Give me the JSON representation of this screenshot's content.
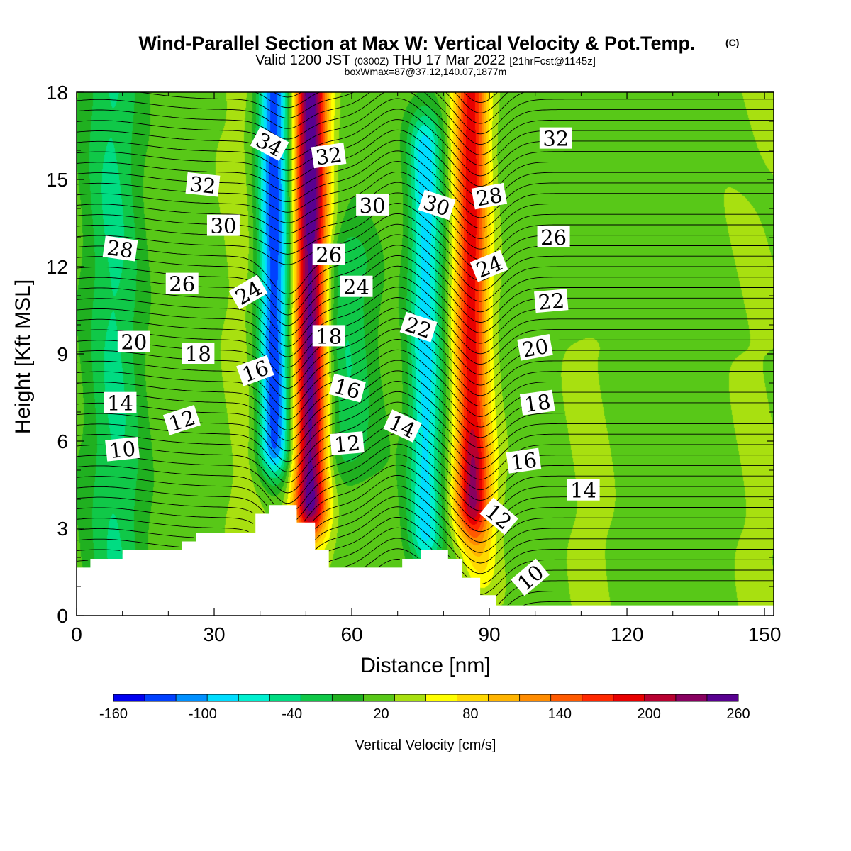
{
  "chart_data": {
    "type": "heatmap",
    "title": "Wind-Parallel Section at Max W: Vertical Velocity & Pot.Temp.",
    "copyright_mark": "(C)",
    "subtitle": {
      "valid_prefix": "Valid 1200 JST",
      "utc": "(0300Z)",
      "date": "THU 17 Mar 2022",
      "forecast": "[21hrFcst@1145z]"
    },
    "subtitle2": "boxWmax=87@37.12,140.07,1877m",
    "xlabel": "Distance [nm]",
    "ylabel": "Height [Kft MSL]",
    "xlim": [
      0,
      152
    ],
    "ylim": [
      0,
      18
    ],
    "x_ticks": [
      "0",
      "30",
      "60",
      "90",
      "120",
      "150"
    ],
    "y_ticks": [
      "0",
      "3",
      "6",
      "9",
      "12",
      "15",
      "18"
    ],
    "colorbar": {
      "title": "Vertical Velocity [cm/s]",
      "min": -160,
      "max": 260,
      "step": 20,
      "labels": [
        "-160",
        "-100",
        "-40",
        "20",
        "80",
        "140",
        "200",
        "260"
      ],
      "colors": [
        "#0000f0",
        "#0040ff",
        "#0090ff",
        "#00ddff",
        "#00f0d0",
        "#00dc82",
        "#10c848",
        "#20b020",
        "#58c818",
        "#a8e010",
        "#ffff00",
        "#ffd800",
        "#ffb400",
        "#ff8c00",
        "#ff5a00",
        "#ff2800",
        "#e80000",
        "#b80030",
        "#880060",
        "#580090"
      ]
    },
    "velocity_field": {
      "background": 10,
      "features": [
        {
          "x": 38,
          "z_range": [
            2,
            18
          ],
          "value": 30
        },
        {
          "x": 43,
          "z_range": [
            6,
            18
          ],
          "value": -140
        },
        {
          "x": 51,
          "z_range": [
            4,
            18
          ],
          "value": 240
        },
        {
          "x": 58,
          "z_range": [
            6,
            12
          ],
          "value": -40
        },
        {
          "x": 76,
          "z_range": [
            3,
            16
          ],
          "value": -90
        },
        {
          "x": 86,
          "z_range": [
            4,
            18
          ],
          "value": 170
        },
        {
          "x": 88,
          "z_range": [
            2,
            5
          ],
          "value": 60
        },
        {
          "x": 113,
          "z_range": [
            0,
            9
          ],
          "value": 25
        },
        {
          "x": 8,
          "z_range": [
            2,
            18
          ],
          "value": -40
        },
        {
          "x": 150,
          "z_range": [
            0,
            18
          ],
          "value": 25
        }
      ]
    },
    "terrain": [
      [
        0,
        1.65
      ],
      [
        3,
        1.65
      ],
      [
        3,
        1.95
      ],
      [
        10,
        1.95
      ],
      [
        10,
        2.25
      ],
      [
        23,
        2.25
      ],
      [
        23,
        2.55
      ],
      [
        26,
        2.55
      ],
      [
        26,
        2.85
      ],
      [
        39,
        2.85
      ],
      [
        39,
        3.5
      ],
      [
        42,
        3.5
      ],
      [
        42,
        3.8
      ],
      [
        48,
        3.8
      ],
      [
        48,
        3.2
      ],
      [
        52,
        3.2
      ],
      [
        52,
        2.25
      ],
      [
        55,
        2.25
      ],
      [
        55,
        1.65
      ],
      [
        71,
        1.65
      ],
      [
        71,
        1.95
      ],
      [
        75,
        1.95
      ],
      [
        75,
        2.25
      ],
      [
        81,
        2.25
      ],
      [
        81,
        1.95
      ],
      [
        84,
        1.95
      ],
      [
        84,
        1.3
      ],
      [
        88,
        1.3
      ],
      [
        88,
        0.7
      ],
      [
        91.5,
        0.7
      ],
      [
        91.5,
        0.35
      ],
      [
        152,
        0.35
      ]
    ],
    "contour_levels": [
      10,
      12,
      14,
      16,
      18,
      20,
      22,
      24,
      26,
      28,
      30,
      32,
      34
    ],
    "contour_labels": [
      {
        "text": "34",
        "x": 42,
        "z": 16.2,
        "rotation": 28
      },
      {
        "text": "32",
        "x": 55,
        "z": 15.8,
        "rotation": -8
      },
      {
        "text": "32",
        "x": 27.5,
        "z": 14.8,
        "rotation": 6
      },
      {
        "text": "30",
        "x": 32,
        "z": 13.4,
        "rotation": 0
      },
      {
        "text": "28",
        "x": 9.5,
        "z": 12.6,
        "rotation": 8
      },
      {
        "text": "26",
        "x": 23,
        "z": 11.4,
        "rotation": 0
      },
      {
        "text": "24",
        "x": 37.5,
        "z": 11.1,
        "rotation": -30
      },
      {
        "text": "20",
        "x": 12.5,
        "z": 9.4,
        "rotation": 0
      },
      {
        "text": "18",
        "x": 26.5,
        "z": 9.0,
        "rotation": 0
      },
      {
        "text": "16",
        "x": 39,
        "z": 8.4,
        "rotation": -20
      },
      {
        "text": "14",
        "x": 9.5,
        "z": 7.3,
        "rotation": 0
      },
      {
        "text": "12",
        "x": 23,
        "z": 6.7,
        "rotation": -18
      },
      {
        "text": "10",
        "x": 10,
        "z": 5.7,
        "rotation": -6
      },
      {
        "text": "26",
        "x": 55,
        "z": 12.4,
        "rotation": 0
      },
      {
        "text": "24",
        "x": 61,
        "z": 11.3,
        "rotation": 0
      },
      {
        "text": "18",
        "x": 55,
        "z": 9.6,
        "rotation": 0
      },
      {
        "text": "16",
        "x": 59,
        "z": 7.8,
        "rotation": 15
      },
      {
        "text": "12",
        "x": 59,
        "z": 5.9,
        "rotation": -5
      },
      {
        "text": "30",
        "x": 64.5,
        "z": 14.1,
        "rotation": 0
      },
      {
        "text": "30",
        "x": 78.5,
        "z": 14.1,
        "rotation": 18
      },
      {
        "text": "22",
        "x": 74.5,
        "z": 9.9,
        "rotation": 18
      },
      {
        "text": "14",
        "x": 71,
        "z": 6.5,
        "rotation": 25
      },
      {
        "text": "28",
        "x": 90,
        "z": 14.4,
        "rotation": -10
      },
      {
        "text": "24",
        "x": 90,
        "z": 12.0,
        "rotation": -22
      },
      {
        "text": "32",
        "x": 104.5,
        "z": 16.4,
        "rotation": 0
      },
      {
        "text": "26",
        "x": 104,
        "z": 13.0,
        "rotation": 0
      },
      {
        "text": "22",
        "x": 103.5,
        "z": 10.8,
        "rotation": -5
      },
      {
        "text": "20",
        "x": 100,
        "z": 9.2,
        "rotation": -10
      },
      {
        "text": "18",
        "x": 100.5,
        "z": 7.3,
        "rotation": -8
      },
      {
        "text": "16",
        "x": 97.5,
        "z": 5.3,
        "rotation": -8
      },
      {
        "text": "14",
        "x": 110.5,
        "z": 4.3,
        "rotation": 0
      },
      {
        "text": "12",
        "x": 92,
        "z": 3.4,
        "rotation": 40
      },
      {
        "text": "10",
        "x": 99,
        "z": 1.3,
        "rotation": -40
      }
    ]
  }
}
